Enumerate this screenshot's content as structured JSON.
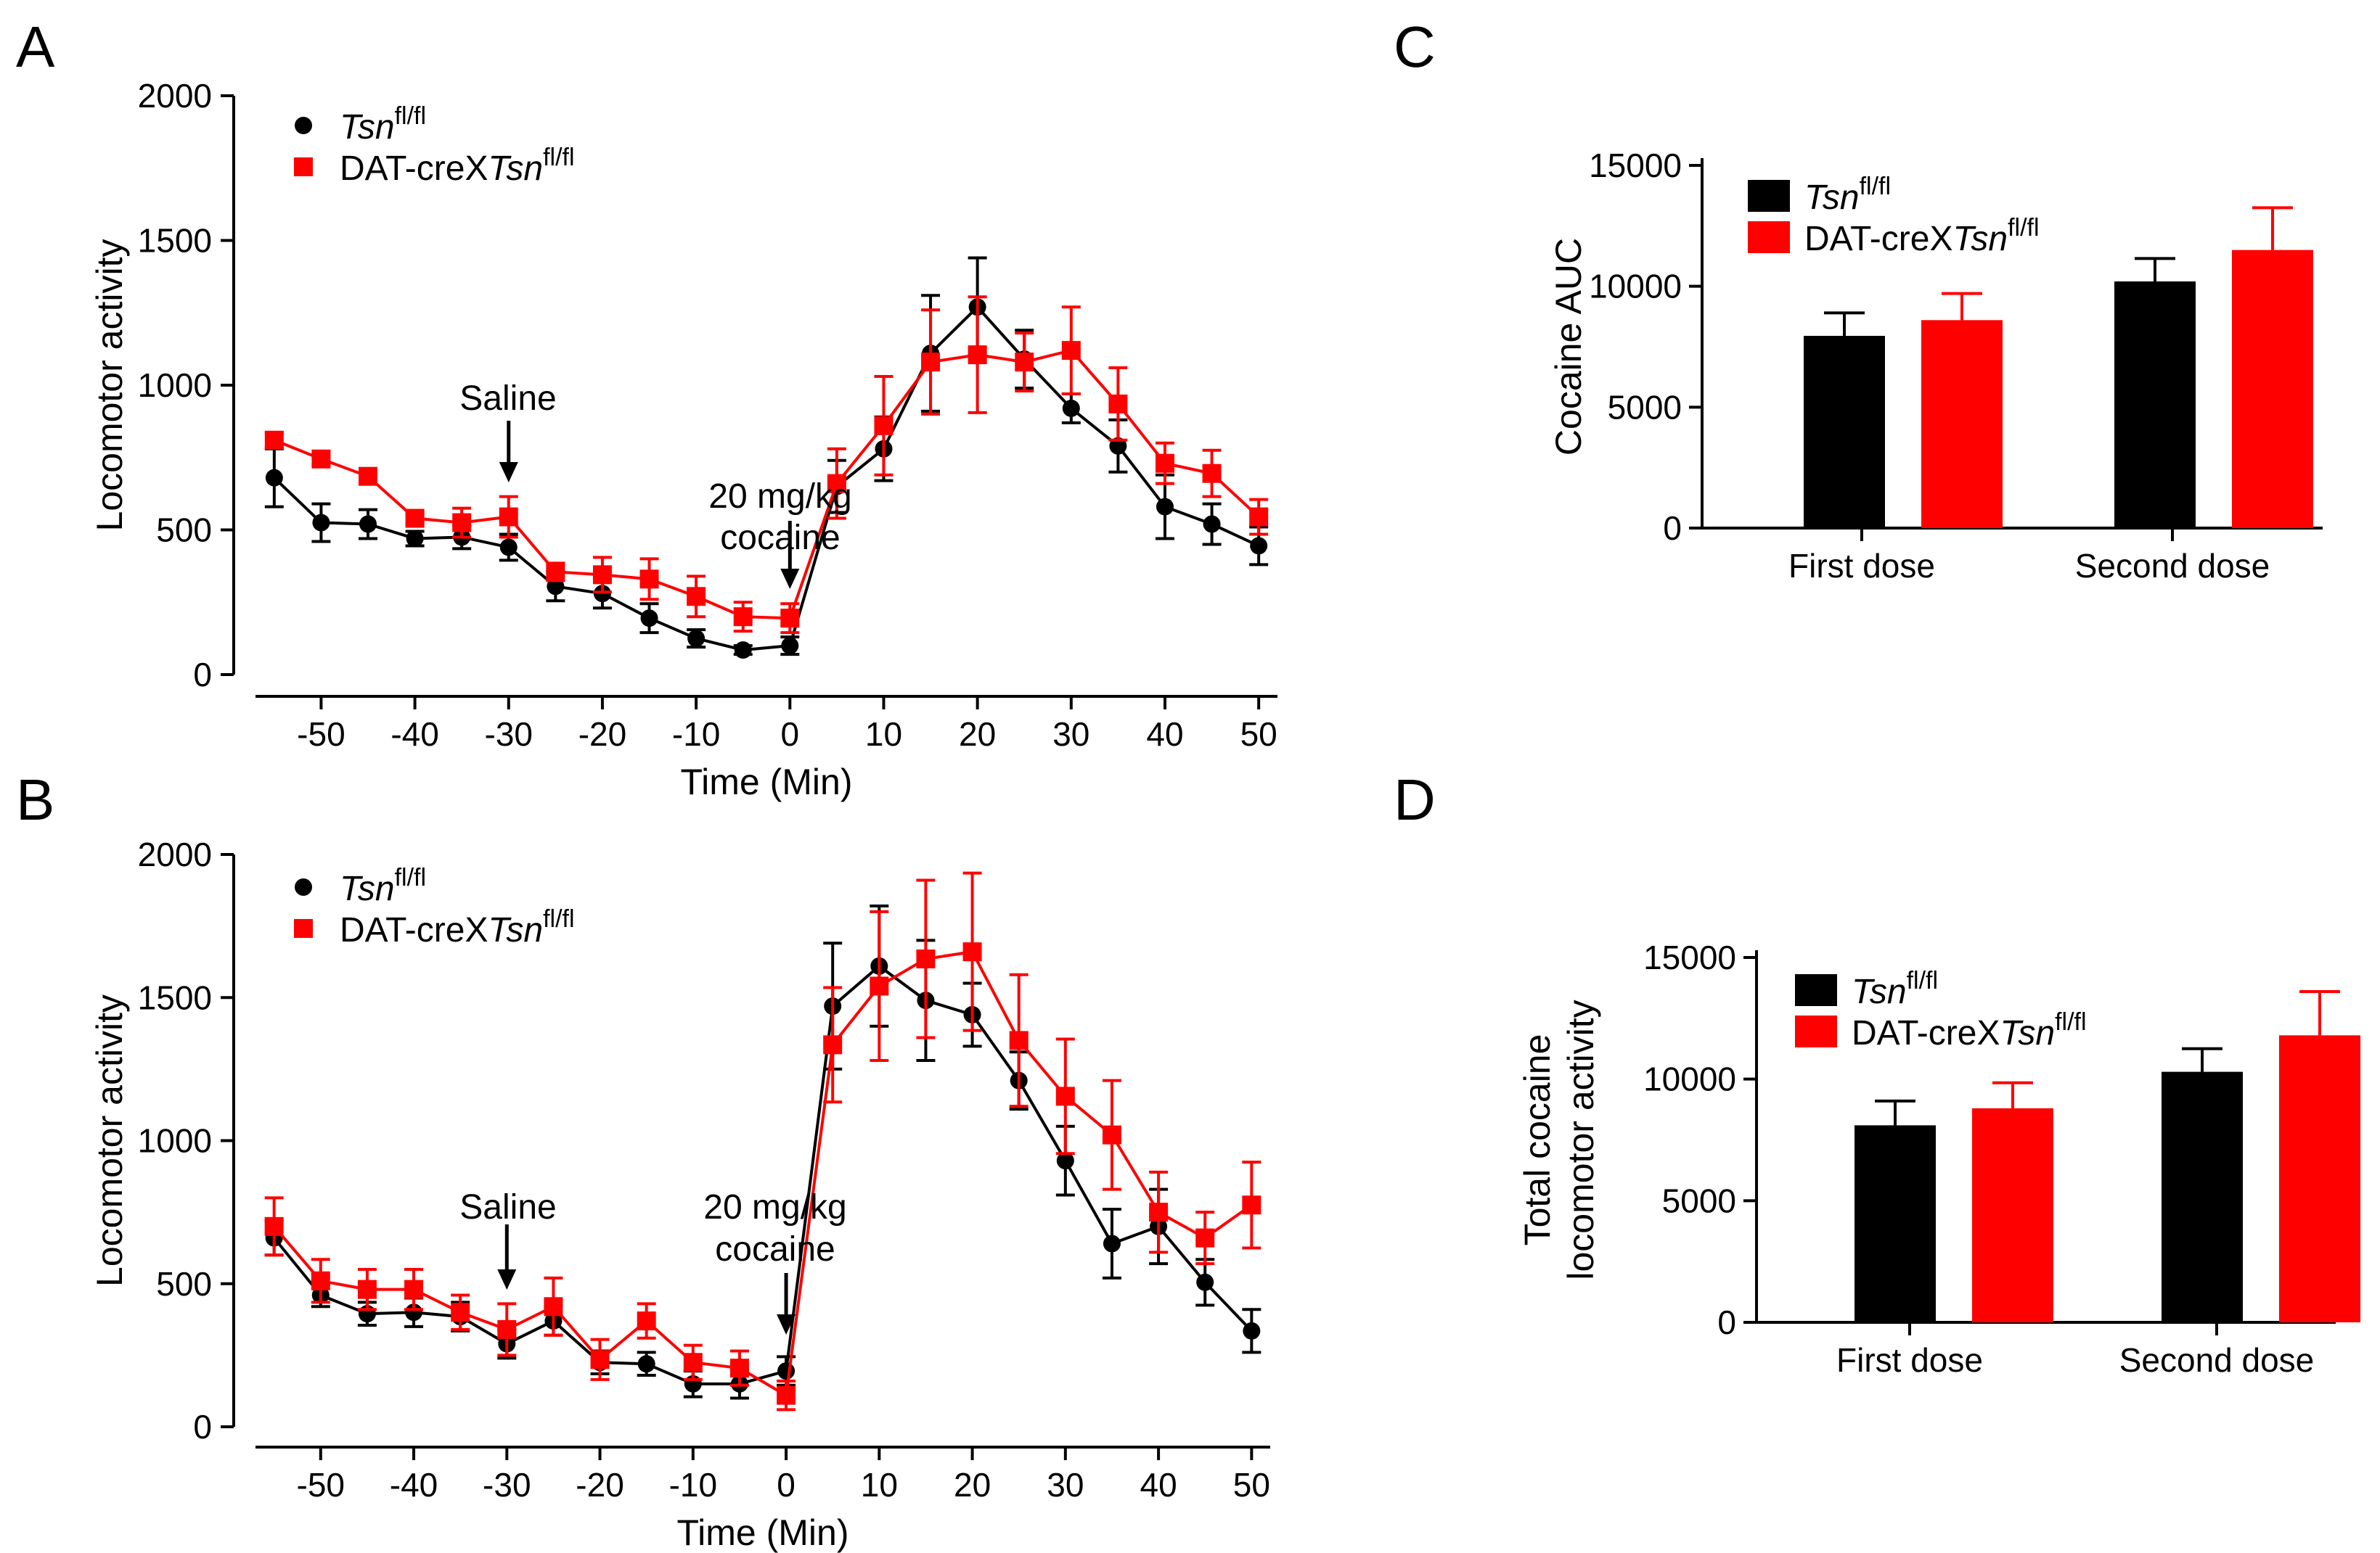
{
  "figure": {
    "background": "#ffffff"
  },
  "chart_data": [
    {
      "id": "A",
      "panel_label": "A",
      "type": "line",
      "xlabel": "Time (Min)",
      "ylabel": "Locomotor activity",
      "xlim": [
        -57,
        52
      ],
      "ylim": [
        0,
        2000
      ],
      "xticks": [
        -50,
        -40,
        -30,
        -20,
        -10,
        0,
        10,
        20,
        30,
        40,
        50
      ],
      "yticks": [
        0,
        500,
        1000,
        1500,
        2000
      ],
      "x": [
        -55,
        -50,
        -45,
        -40,
        -35,
        -30,
        -25,
        -20,
        -15,
        -10,
        -5,
        0,
        5,
        10,
        15,
        20,
        25,
        30,
        35,
        40,
        45,
        50
      ],
      "series": [
        {
          "name_main": "Tsn",
          "name_sup": "fl/fl",
          "color": "#000000",
          "marker": "circle",
          "values": [
            680,
            525,
            520,
            470,
            475,
            440,
            305,
            280,
            195,
            125,
            85,
            100,
            650,
            780,
            1110,
            1270,
            1090,
            920,
            790,
            580,
            520,
            445
          ],
          "errors": [
            100,
            65,
            50,
            25,
            40,
            45,
            50,
            50,
            50,
            30,
            15,
            30,
            90,
            110,
            200,
            170,
            100,
            50,
            90,
            110,
            70,
            65
          ]
        },
        {
          "name_prefix": "DAT-creX",
          "name_main": "Tsn",
          "name_sup": "fl/fl",
          "color": "#ff0000",
          "marker": "square",
          "values": [
            810,
            745,
            685,
            540,
            525,
            545,
            355,
            345,
            330,
            270,
            200,
            195,
            660,
            860,
            1080,
            1105,
            1080,
            1120,
            935,
            730,
            695,
            545
          ],
          "errors": [
            25,
            20,
            15,
            20,
            50,
            70,
            30,
            60,
            70,
            70,
            50,
            50,
            120,
            170,
            180,
            200,
            100,
            150,
            125,
            70,
            80,
            60
          ]
        }
      ],
      "annotations": [
        {
          "label_lines": [
            "Saline"
          ],
          "x": -30
        },
        {
          "label_lines": [
            "20 mg/kg",
            "cocaine"
          ],
          "x": 0
        }
      ],
      "legend_position": "top-left"
    },
    {
      "id": "B",
      "panel_label": "B",
      "type": "line",
      "xlabel": "Time (Min)",
      "ylabel": "Locomotor activity",
      "xlim": [
        -57,
        52
      ],
      "ylim": [
        0,
        2000
      ],
      "xticks": [
        -50,
        -40,
        -30,
        -20,
        -10,
        0,
        10,
        20,
        30,
        40,
        50
      ],
      "yticks": [
        0,
        500,
        1000,
        1500,
        2000
      ],
      "x": [
        -55,
        -50,
        -45,
        -40,
        -35,
        -30,
        -25,
        -20,
        -15,
        -10,
        -5,
        0,
        5,
        10,
        15,
        20,
        25,
        30,
        35,
        40,
        45,
        50
      ],
      "series": [
        {
          "name_main": "Tsn",
          "name_sup": "fl/fl",
          "color": "#000000",
          "marker": "circle",
          "values": [
            660,
            460,
            395,
            400,
            385,
            290,
            370,
            225,
            220,
            150,
            150,
            195,
            1470,
            1610,
            1490,
            1440,
            1210,
            930,
            640,
            700,
            505,
            335
          ],
          "errors": [
            60,
            40,
            40,
            50,
            50,
            50,
            50,
            40,
            40,
            45,
            50,
            50,
            220,
            210,
            210,
            110,
            100,
            120,
            120,
            130,
            80,
            75
          ]
        },
        {
          "name_prefix": "DAT-creX",
          "name_main": "Tsn",
          "name_sup": "fl/fl",
          "color": "#ff0000",
          "marker": "square",
          "values": [
            700,
            510,
            480,
            480,
            400,
            340,
            420,
            235,
            370,
            225,
            205,
            110,
            1335,
            1540,
            1635,
            1660,
            1350,
            1155,
            1020,
            750,
            660,
            775
          ],
          "errors": [
            100,
            75,
            70,
            70,
            60,
            90,
            100,
            70,
            60,
            60,
            60,
            50,
            200,
            260,
            275,
            275,
            230,
            200,
            190,
            140,
            90,
            150
          ]
        }
      ],
      "annotations": [
        {
          "label_lines": [
            "Saline"
          ],
          "x": -30
        },
        {
          "label_lines": [
            "20 mg/kg",
            "cocaine"
          ],
          "x": 0
        }
      ],
      "legend_position": "top-left"
    },
    {
      "id": "C",
      "panel_label": "C",
      "type": "bar",
      "xlabel": "",
      "ylabel_lines": [
        "Cocaine AUC"
      ],
      "ylim": [
        0,
        15000
      ],
      "yticks": [
        0,
        5000,
        10000,
        15000
      ],
      "categories": [
        "First dose",
        "Second dose"
      ],
      "series": [
        {
          "name_main": "Tsn",
          "name_sup": "fl/fl",
          "color": "#000000",
          "values": [
            7950,
            10200
          ],
          "errors": [
            950,
            950
          ]
        },
        {
          "name_prefix": "DAT-creX",
          "name_main": "Tsn",
          "name_sup": "fl/fl",
          "color": "#ff0000",
          "values": [
            8600,
            11500
          ],
          "errors": [
            1100,
            1750
          ]
        }
      ],
      "legend_position": "top-left"
    },
    {
      "id": "D",
      "panel_label": "D",
      "type": "bar",
      "xlabel": "",
      "ylabel_lines": [
        "Total cocaine",
        "locomotor activity"
      ],
      "ylim": [
        0,
        15000
      ],
      "yticks": [
        0,
        5000,
        10000,
        15000
      ],
      "categories": [
        "First dose",
        "Second dose"
      ],
      "series": [
        {
          "name_main": "Tsn",
          "name_sup": "fl/fl",
          "color": "#000000",
          "values": [
            8100,
            10300
          ],
          "errors": [
            1000,
            950
          ]
        },
        {
          "name_prefix": "DAT-creX",
          "name_main": "Tsn",
          "name_sup": "fl/fl",
          "color": "#ff0000",
          "values": [
            8800,
            11800
          ],
          "errors": [
            1050,
            1800
          ]
        }
      ],
      "legend_position": "top-left"
    }
  ]
}
